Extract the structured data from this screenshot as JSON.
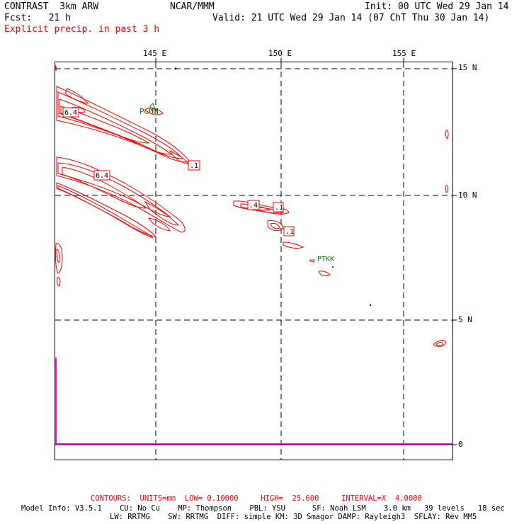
{
  "header": {
    "model_title": "CONTRAST  3km ARW",
    "center_title": "NCAR/MMM",
    "init": "Init: 00 UTC Wed 29 Jan 14",
    "fcst": "Fcst:   21 h",
    "valid": "Valid: 21 UTC Wed 29 Jan 14 (07 ChT Thu 30 Jan 14)",
    "field_title": "Explicit precip. in past 3 h"
  },
  "map": {
    "lon_labels": [
      "145 E",
      "150 E",
      "155 E"
    ],
    "lat_labels": [
      "15 N",
      "10 N",
      "5 N",
      "0"
    ],
    "stations": [
      "PGUM",
      "PTKK"
    ],
    "contour_labels": [
      "6.4",
      "6.4",
      ".1",
      ".4",
      ".1",
      ".1"
    ],
    "colors": {
      "contour": "#ff0000",
      "station": "#008000",
      "boundary": "#ff00ff",
      "frame": "#000000"
    }
  },
  "footer": {
    "contours_line": "CONTOURS:  UNITS=mm  LOW= 0.10000     HIGH=  25.600     INTERVAL=X  4.0000",
    "model_info_line1": "Model Info: V3.5.1    CU: No Cu    MP: Thompson    PBL: YSU      SF: Noah LSM    3.0 km   39 levels   18 sec",
    "model_info_line2": "LW: RRTMG    SW: RRTMG  DIFF: simple KM: 3D Smagor DAMP: Rayleigh3  SFLAY: Rev MM5"
  }
}
